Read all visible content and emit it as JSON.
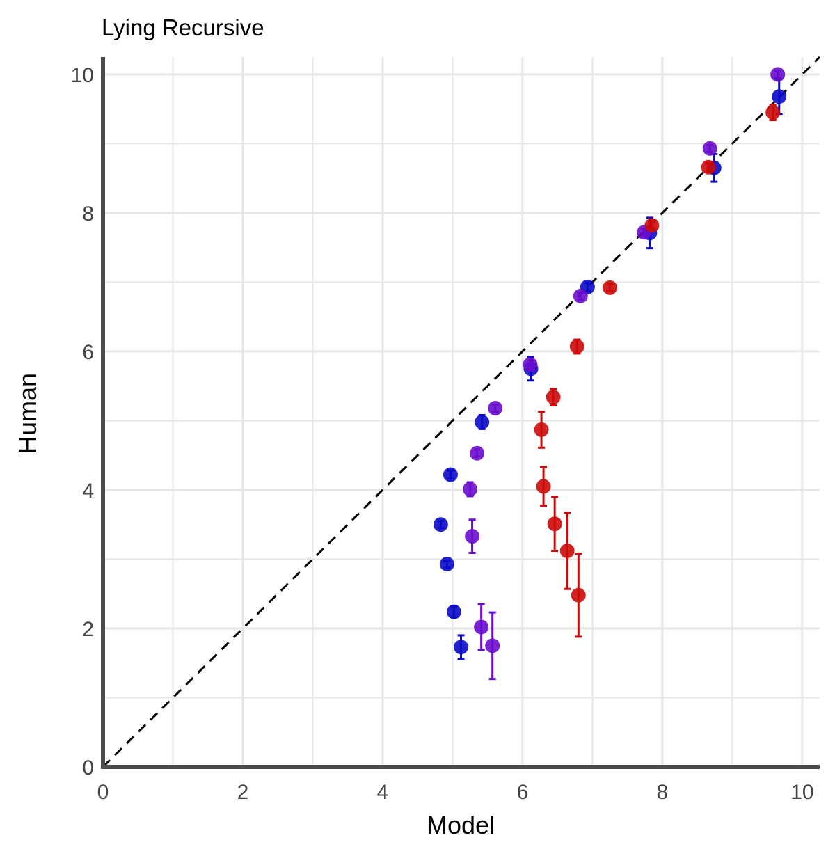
{
  "chart_data": {
    "type": "scatter",
    "title": "Lying Recursive",
    "xlabel": "Model",
    "ylabel": "Human",
    "xlim": [
      0,
      10.25
    ],
    "ylim": [
      0,
      10.25
    ],
    "x_ticks": [
      0,
      2,
      4,
      6,
      8,
      10
    ],
    "y_ticks": [
      0,
      2,
      4,
      6,
      8,
      10
    ],
    "x_tick_labels": [
      "0",
      "2",
      "4",
      "6",
      "8",
      "10"
    ],
    "y_tick_labels": [
      "0",
      "2",
      "4",
      "6",
      "8",
      "10"
    ],
    "grid": true,
    "legend": "none",
    "reference_line": "y = x, dashed, black",
    "series": [
      {
        "color": "#0a0ac8",
        "points": [
          {
            "x": 5.12,
            "y": 1.73,
            "err": 0.17
          },
          {
            "x": 5.02,
            "y": 2.24,
            "err": 0.08
          },
          {
            "x": 4.92,
            "y": 2.93,
            "err": 0.05
          },
          {
            "x": 4.83,
            "y": 3.5,
            "err": 0.05
          },
          {
            "x": 4.97,
            "y": 4.22,
            "err": 0.06
          },
          {
            "x": 5.42,
            "y": 4.98,
            "err": 0.1
          },
          {
            "x": 6.12,
            "y": 5.75,
            "err": 0.17
          },
          {
            "x": 6.93,
            "y": 6.93,
            "err": 0.06
          },
          {
            "x": 7.82,
            "y": 7.71,
            "err": 0.22
          },
          {
            "x": 8.74,
            "y": 8.65,
            "err": 0.2
          },
          {
            "x": 9.67,
            "y": 9.68,
            "err": 0.25
          }
        ]
      },
      {
        "color": "#6a0ccc",
        "points": [
          {
            "x": 5.57,
            "y": 1.75,
            "err": 0.48
          },
          {
            "x": 5.41,
            "y": 2.02,
            "err": 0.33
          },
          {
            "x": 5.28,
            "y": 3.33,
            "err": 0.24
          },
          {
            "x": 5.25,
            "y": 4.01,
            "err": 0.1
          },
          {
            "x": 5.35,
            "y": 4.53,
            "err": 0.05
          },
          {
            "x": 5.61,
            "y": 5.18,
            "err": 0.05
          },
          {
            "x": 6.11,
            "y": 5.81,
            "err": 0.06
          },
          {
            "x": 6.83,
            "y": 6.8,
            "err": 0.05
          },
          {
            "x": 7.74,
            "y": 7.72,
            "err": 0.05
          },
          {
            "x": 8.68,
            "y": 8.93,
            "err": 0.05
          },
          {
            "x": 9.65,
            "y": 10.0,
            "err": 0.05
          }
        ]
      },
      {
        "color": "#cc0a0a",
        "points": [
          {
            "x": 6.8,
            "y": 2.48,
            "err": 0.6
          },
          {
            "x": 6.64,
            "y": 3.12,
            "err": 0.55
          },
          {
            "x": 6.46,
            "y": 3.51,
            "err": 0.39
          },
          {
            "x": 6.3,
            "y": 4.05,
            "err": 0.28
          },
          {
            "x": 6.27,
            "y": 4.87,
            "err": 0.26
          },
          {
            "x": 6.44,
            "y": 5.34,
            "err": 0.12
          },
          {
            "x": 6.78,
            "y": 6.07,
            "err": 0.1
          },
          {
            "x": 7.25,
            "y": 6.92,
            "err": 0.05
          },
          {
            "x": 7.85,
            "y": 7.82,
            "err": 0.05
          },
          {
            "x": 8.66,
            "y": 8.66,
            "err": 0.06
          },
          {
            "x": 9.58,
            "y": 9.45,
            "err": 0.11
          }
        ]
      }
    ]
  }
}
